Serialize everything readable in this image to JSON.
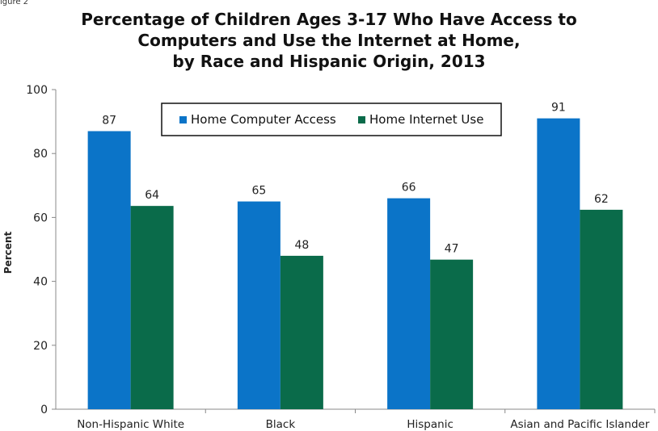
{
  "figure_label": "igure 2",
  "chart_data": {
    "type": "bar",
    "title_lines": [
      "Percentage of Children Ages 3-17 Who Have Access to",
      "Computers and Use the Internet at Home,",
      "by Race and Hispanic Origin, 2013"
    ],
    "xlabel": "",
    "ylabel": "Percent",
    "ylim": [
      0,
      100
    ],
    "yticks": [
      0,
      20,
      40,
      60,
      80,
      100
    ],
    "categories": [
      "Non-Hispanic White",
      "Black",
      "Hispanic",
      "Asian and Pacific Islander"
    ],
    "series": [
      {
        "name": "Home Computer Access",
        "color": "#0b74c8",
        "values": [
          87,
          65,
          66,
          91
        ],
        "labels": [
          "87",
          "65",
          "66",
          "91"
        ]
      },
      {
        "name": "Home Internet Use",
        "color": "#0a6b4a",
        "values": [
          63.6,
          48,
          46.8,
          62.4
        ],
        "labels": [
          "64",
          "48",
          "47",
          "62"
        ]
      }
    ],
    "legend_position": "top-center, boxed",
    "grid": false
  }
}
